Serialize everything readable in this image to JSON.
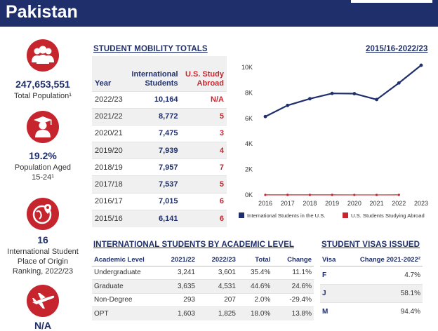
{
  "header": {
    "country": "Pakistan"
  },
  "left": {
    "population": {
      "value": "247,653,551",
      "label": "Total Population¹"
    },
    "aged": {
      "value": "19.2%",
      "label_line1": "Population Aged",
      "label_line2": "15-24¹"
    },
    "ranking": {
      "value": "16",
      "label_line1": "International Student",
      "label_line2": "Place of Origin",
      "label_line3": "Ranking, 2022/23"
    },
    "travel": {
      "value": "N/A"
    }
  },
  "mobility": {
    "title": "STUDENT MOBILITY TOTALS",
    "range_title": "2015/16-2022/23",
    "headers": {
      "year": "Year",
      "intl_line1": "International",
      "intl_line2": "Students",
      "abroad_line1": "U.S. Study",
      "abroad_line2": "Abroad"
    },
    "rows": [
      {
        "year": "2022/23",
        "intl": "10,164",
        "abroad": "N/A"
      },
      {
        "year": "2021/22",
        "intl": "8,772",
        "abroad": "5"
      },
      {
        "year": "2020/21",
        "intl": "7,475",
        "abroad": "3"
      },
      {
        "year": "2019/20",
        "intl": "7,939",
        "abroad": "4"
      },
      {
        "year": "2018/19",
        "intl": "7,957",
        "abroad": "7"
      },
      {
        "year": "2017/18",
        "intl": "7,537",
        "abroad": "5"
      },
      {
        "year": "2016/17",
        "intl": "7,015",
        "abroad": "6"
      },
      {
        "year": "2015/16",
        "intl": "6,141",
        "abroad": "6"
      }
    ]
  },
  "chart_data": {
    "type": "line",
    "x": [
      "2016",
      "2017",
      "2018",
      "2019",
      "2020",
      "2021",
      "2022",
      "2023"
    ],
    "y_ticks": [
      "0K",
      "2K",
      "4K",
      "6K",
      "8K",
      "10K"
    ],
    "ylim": [
      0,
      10000
    ],
    "series": [
      {
        "name": "International Students in the U.S.",
        "color": "#1f2f6b",
        "values": [
          6141,
          7015,
          7537,
          7957,
          7939,
          7475,
          8772,
          10164
        ]
      },
      {
        "name": "U.S. Students Studying Abroad",
        "color": "#c6252e",
        "values": [
          6,
          6,
          5,
          7,
          4,
          3,
          5,
          null
        ]
      }
    ],
    "legend": "bottom",
    "grid": false
  },
  "levels": {
    "title": "INTERNATIONAL STUDENTS BY ACADEMIC LEVEL",
    "headers": {
      "level": "Academic Level",
      "y1": "2021/22",
      "y2": "2022/23",
      "total": "Total",
      "change": "Change"
    },
    "rows": [
      {
        "level": "Undergraduate",
        "y1": "3,241",
        "y2": "3,601",
        "total": "35.4%",
        "change": "11.1%"
      },
      {
        "level": "Graduate",
        "y1": "3,635",
        "y2": "4,531",
        "total": "44.6%",
        "change": "24.6%"
      },
      {
        "level": "Non-Degree",
        "y1": "293",
        "y2": "207",
        "total": "2.0%",
        "change": "-29.4%"
      },
      {
        "level": "OPT",
        "y1": "1,603",
        "y2": "1,825",
        "total": "18.0%",
        "change": "13.8%"
      }
    ]
  },
  "visas": {
    "title": "STUDENT VISAS ISSUED",
    "headers": {
      "visa": "Visa",
      "change": "Change 2021-2022²"
    },
    "rows": [
      {
        "visa": "F",
        "change": "4.7%"
      },
      {
        "visa": "J",
        "change": "58.1%"
      },
      {
        "visa": "M",
        "change": "94.4%"
      }
    ]
  },
  "icons": {
    "population": "people-group-icon",
    "aged": "graduate-icon",
    "ranking": "globe-pin-icon",
    "travel": "airplane-icon"
  }
}
